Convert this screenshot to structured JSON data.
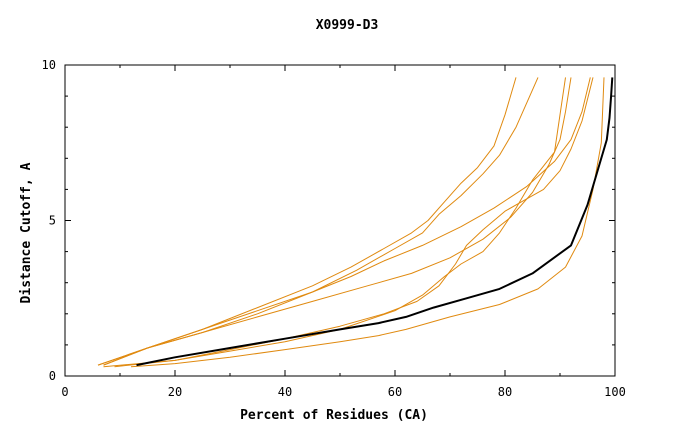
{
  "chart_data": {
    "type": "line",
    "title": "X0999-D3",
    "xlabel": "Percent of Residues (CA)",
    "ylabel": "Distance Cutoff, A",
    "xlim": [
      0,
      100
    ],
    "ylim": [
      0,
      10
    ],
    "x_ticks": [
      "0",
      "20",
      "40",
      "60",
      "80",
      "100"
    ],
    "y_ticks": [
      "0",
      "5",
      "10"
    ],
    "grid": false,
    "colors": {
      "highlight": "#000000",
      "others": "#e08a10"
    },
    "series": [
      {
        "highlight": true,
        "x": [
          13,
          20,
          30,
          40,
          50,
          57,
          62,
          67,
          73,
          79,
          85,
          92,
          95,
          97,
          98.5,
          99,
          99.3,
          99.5
        ],
        "y": [
          0.35,
          0.6,
          0.9,
          1.2,
          1.5,
          1.7,
          1.9,
          2.2,
          2.5,
          2.8,
          3.3,
          4.2,
          5.5,
          6.7,
          7.6,
          8.3,
          9.0,
          9.6
        ]
      },
      {
        "highlight": false,
        "x": [
          12,
          20,
          30,
          40,
          50,
          57,
          62,
          70,
          79,
          86,
          91,
          94,
          96,
          97.5,
          98
        ],
        "y": [
          0.3,
          0.4,
          0.6,
          0.85,
          1.1,
          1.3,
          1.5,
          1.9,
          2.3,
          2.8,
          3.5,
          4.5,
          6.0,
          7.5,
          9.6
        ]
      },
      {
        "highlight": false,
        "x": [
          7,
          15,
          25,
          35,
          45,
          52,
          58,
          63,
          66,
          69,
          72,
          75,
          78,
          80,
          82
        ],
        "y": [
          0.35,
          0.9,
          1.5,
          2.2,
          2.9,
          3.5,
          4.1,
          4.6,
          5.0,
          5.6,
          6.2,
          6.7,
          7.4,
          8.4,
          9.6
        ]
      },
      {
        "highlight": false,
        "x": [
          7,
          15,
          25,
          35,
          45,
          53,
          60,
          65,
          68,
          72,
          76,
          79,
          82,
          84,
          86
        ],
        "y": [
          0.35,
          0.9,
          1.4,
          2.0,
          2.7,
          3.4,
          4.1,
          4.6,
          5.2,
          5.8,
          6.5,
          7.1,
          8.0,
          8.8,
          9.6
        ]
      },
      {
        "highlight": false,
        "x": [
          6,
          15,
          25,
          35,
          45,
          55,
          63,
          70,
          76,
          81,
          85,
          88,
          90,
          91,
          92
        ],
        "y": [
          0.35,
          0.9,
          1.4,
          1.9,
          2.4,
          2.9,
          3.3,
          3.8,
          4.4,
          5.1,
          5.9,
          6.8,
          7.6,
          8.5,
          9.6
        ]
      },
      {
        "highlight": false,
        "x": [
          6,
          15,
          25,
          35,
          45,
          52,
          58,
          65,
          72,
          78,
          84,
          89,
          92,
          94,
          95.5
        ],
        "y": [
          0.35,
          0.9,
          1.5,
          2.1,
          2.7,
          3.2,
          3.7,
          4.2,
          4.8,
          5.4,
          6.1,
          6.9,
          7.6,
          8.5,
          9.6
        ]
      },
      {
        "highlight": false,
        "x": [
          9,
          20,
          30,
          40,
          50,
          60,
          65,
          69,
          72,
          76,
          79,
          82,
          85,
          89,
          91
        ],
        "y": [
          0.3,
          0.5,
          0.8,
          1.1,
          1.5,
          2.1,
          2.6,
          3.2,
          3.6,
          4.0,
          4.6,
          5.4,
          6.3,
          7.2,
          9.6
        ]
      },
      {
        "highlight": false,
        "x": [
          7,
          20,
          30,
          40,
          50,
          58,
          64,
          68,
          71,
          73,
          76,
          78,
          80,
          83,
          87,
          90,
          92,
          94,
          96
        ],
        "y": [
          0.3,
          0.5,
          0.85,
          1.2,
          1.6,
          2.0,
          2.4,
          2.9,
          3.6,
          4.2,
          4.7,
          5.0,
          5.3,
          5.6,
          6.0,
          6.6,
          7.3,
          8.2,
          9.6
        ]
      }
    ]
  }
}
